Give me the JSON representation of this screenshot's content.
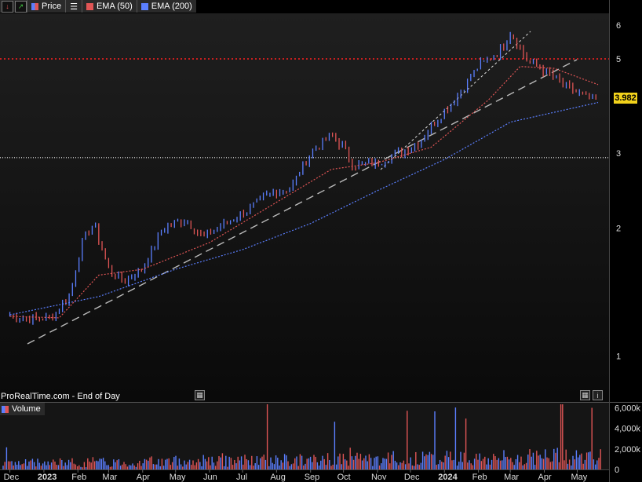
{
  "toolbar": {
    "price_label": "Price",
    "ema50_label": "EMA (50)",
    "ema200_label": "EMA (200)"
  },
  "source_label": "ProRealTime.com - End of Day",
  "volume_label": "Volume",
  "current_price": "3.982",
  "colors": {
    "up": "#5b7fff",
    "down": "#e05555",
    "ema50": "#e05555",
    "ema200": "#5b7fff",
    "price_tag": "#f2d21b"
  },
  "icons": [
    "red-down-arrow-icon",
    "green-up-arrow-icon",
    "list-icon",
    "calendar-icon",
    "info-icon"
  ],
  "chart_data": [
    {
      "type": "line",
      "scale": "log",
      "y_ticks": [
        "6",
        "5",
        "3",
        "2",
        "1"
      ],
      "x_ticks": [
        "Dec",
        "2023",
        "Feb",
        "Mar",
        "Apr",
        "May",
        "Jun",
        "Jul",
        "Aug",
        "Sep",
        "Oct",
        "Nov",
        "Dec",
        "2024",
        "Feb",
        "Mar",
        "Apr",
        "May"
      ],
      "ylim": [
        0.78,
        6.4
      ],
      "series": [
        {
          "name": "Price",
          "x": [
            "2022-12-01",
            "2022-12-20",
            "2023-01-10",
            "2023-01-25",
            "2023-02-05",
            "2023-02-15",
            "2023-03-01",
            "2023-03-15",
            "2023-04-01",
            "2023-04-20",
            "2023-05-10",
            "2023-05-25",
            "2023-06-15",
            "2023-07-05",
            "2023-07-25",
            "2023-08-15",
            "2023-09-01",
            "2023-09-20",
            "2023-10-01",
            "2023-10-10",
            "2023-11-01",
            "2023-11-20",
            "2023-12-10",
            "2023-12-25",
            "2024-01-10",
            "2024-02-01",
            "2024-02-20",
            "2024-03-01",
            "2024-03-15",
            "2024-04-01",
            "2024-04-20",
            "2024-05-10",
            "2024-05-20"
          ],
          "values": [
            1.25,
            1.22,
            1.24,
            1.4,
            1.85,
            2.05,
            1.6,
            1.5,
            1.6,
            2.0,
            2.1,
            1.9,
            2.05,
            2.2,
            2.4,
            2.5,
            3.0,
            3.3,
            3.1,
            2.8,
            2.85,
            3.0,
            3.2,
            3.6,
            4.0,
            4.8,
            5.2,
            5.8,
            5.0,
            4.7,
            4.3,
            4.05,
            3.98
          ]
        },
        {
          "name": "EMA (50)",
          "x": [
            "2022-12-01",
            "2023-01-15",
            "2023-02-20",
            "2023-04-01",
            "2023-06-01",
            "2023-08-01",
            "2023-09-20",
            "2023-11-01",
            "2023-12-20",
            "2024-02-10",
            "2024-03-10",
            "2024-04-10",
            "2024-05-20"
          ],
          "values": [
            1.24,
            1.23,
            1.55,
            1.6,
            1.85,
            2.3,
            2.75,
            2.85,
            3.1,
            4.0,
            4.8,
            4.75,
            4.35
          ]
        },
        {
          "name": "EMA (200)",
          "x": [
            "2022-12-01",
            "2023-02-20",
            "2023-05-01",
            "2023-07-01",
            "2023-09-01",
            "2023-11-01",
            "2024-01-01",
            "2024-03-01",
            "2024-05-20"
          ],
          "values": [
            1.25,
            1.38,
            1.6,
            1.78,
            2.05,
            2.45,
            2.9,
            3.55,
            3.95
          ]
        }
      ],
      "reference_lines": [
        5.0,
        2.93
      ]
    },
    {
      "type": "bar",
      "y_ticks": [
        "6,000k",
        "4,000k",
        "2,000k",
        "0"
      ],
      "ylim": [
        0,
        6500000
      ]
    }
  ]
}
